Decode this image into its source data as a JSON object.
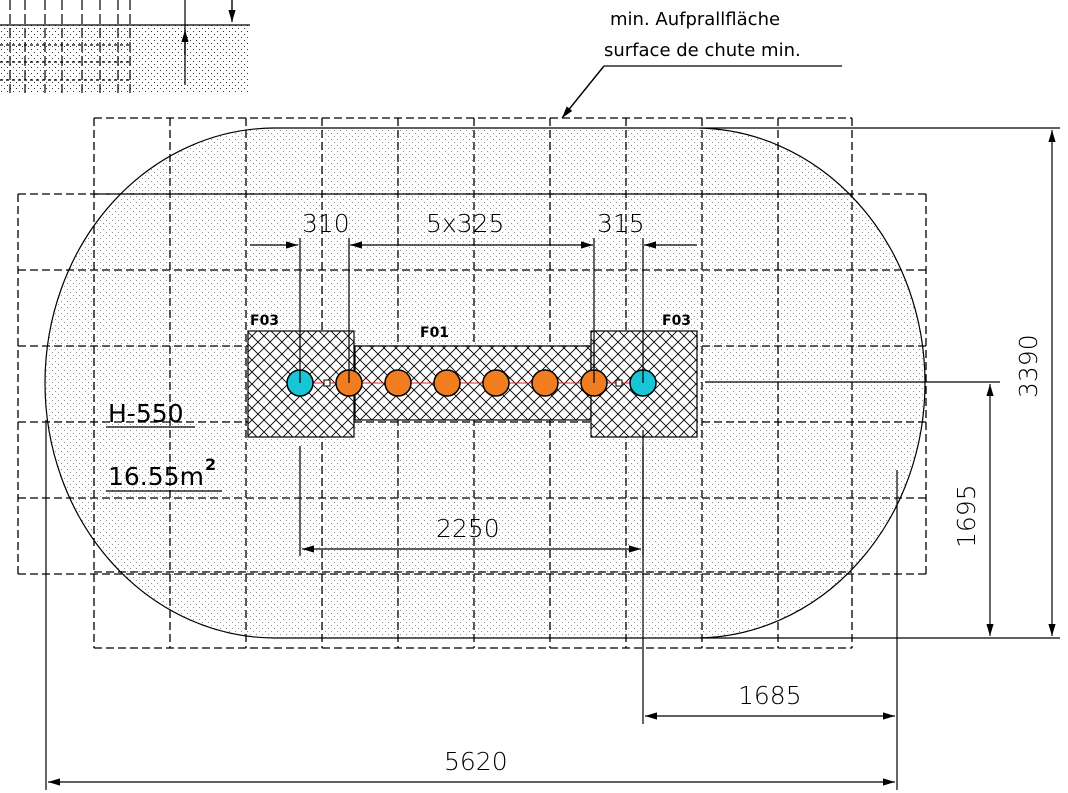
{
  "note": {
    "line1": "min. Aufprallfläche",
    "line2": "surface de chute min."
  },
  "labels": {
    "left_post": "F03",
    "right_post": "F03",
    "beam": "F01",
    "height": "H-550",
    "area_value": "16.55m",
    "area_exp": "2"
  },
  "dimensions": {
    "d310": "310",
    "d5x325": "5x325",
    "d315": "315",
    "d2250": "2250",
    "d1695": "1695",
    "d3390": "3390",
    "d1685": "1685",
    "d5620": "5620"
  },
  "colors": {
    "seat_orange": "#f07d1f",
    "post_cyan": "#19c6d6",
    "speckle": "#777777",
    "line": "#000000",
    "center_line": "#e02020"
  }
}
